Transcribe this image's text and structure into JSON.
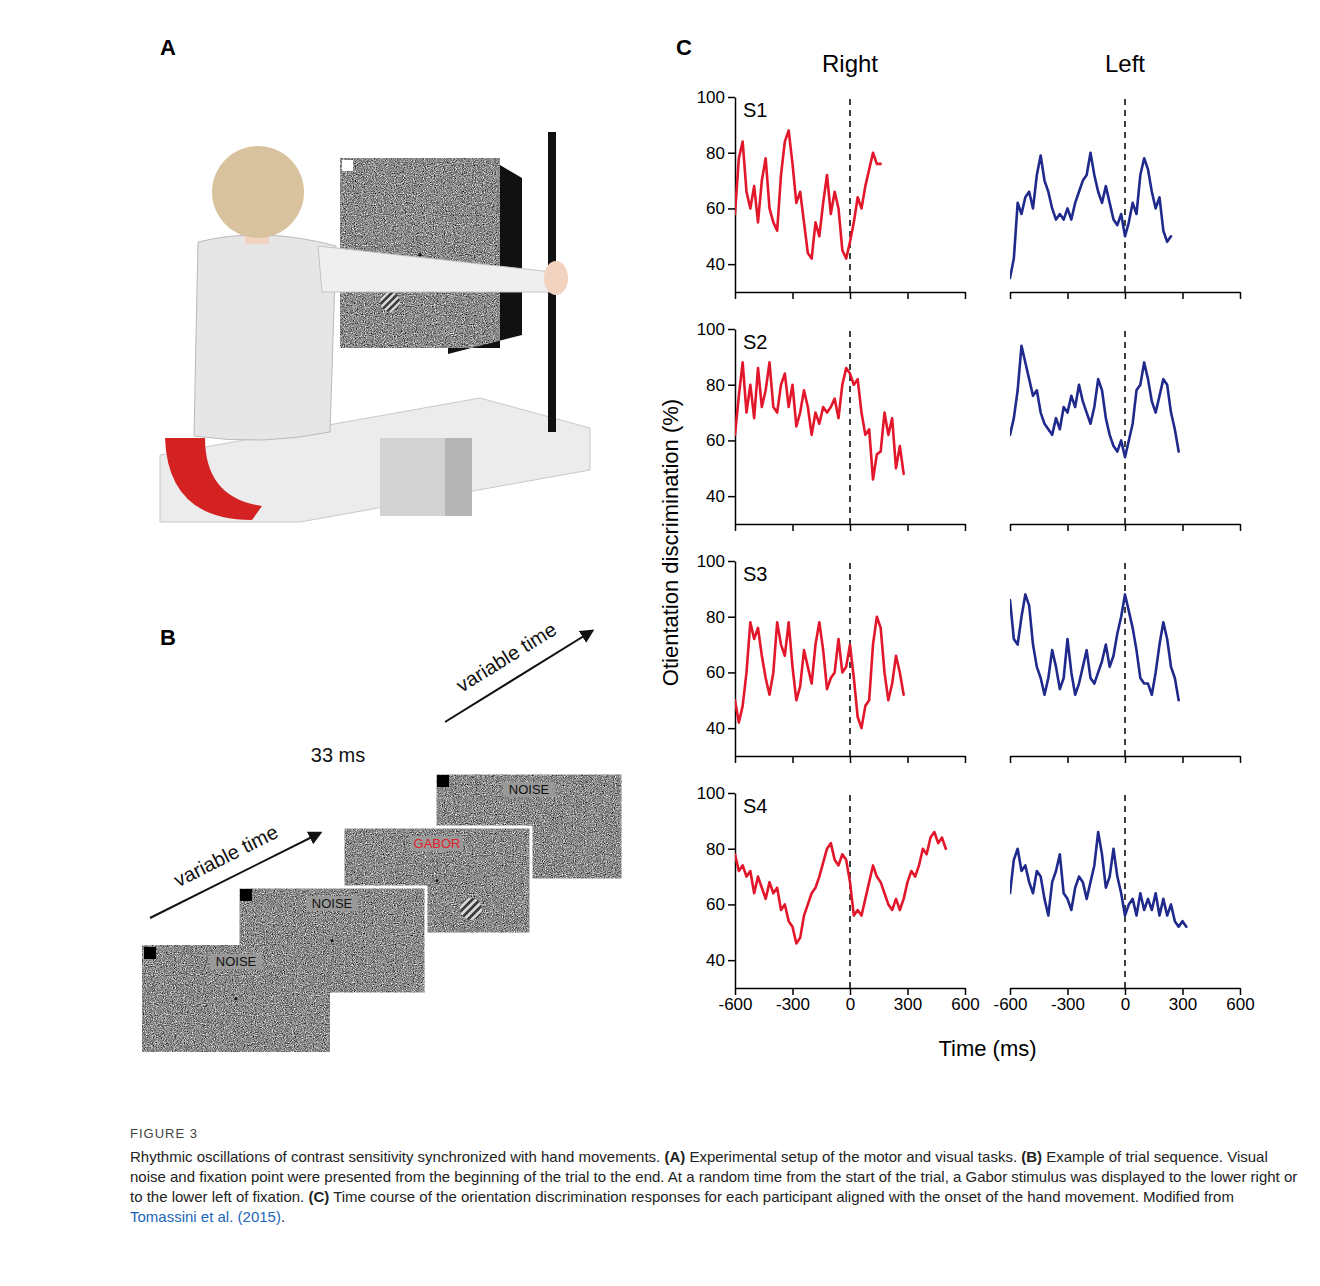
{
  "figure": {
    "label": "FIGURE 3",
    "caption": [
      {
        "text": "Rhythmic oscillations of contrast sensitivity synchronized with hand movements. ",
        "style": "plain"
      },
      {
        "text": "(A)",
        "style": "bold"
      },
      {
        "text": " Experimental setup of the motor and visual tasks. ",
        "style": "plain"
      },
      {
        "text": "(B)",
        "style": "bold"
      },
      {
        "text": " Example of trial sequence. Visual noise and fixation point were presented from the beginning of the trial to the end. At a random time from the start of the trial, a Gabor stimulus was displayed to the lower right or to the lower left of fixation. ",
        "style": "plain"
      },
      {
        "text": "(C)",
        "style": "bold"
      },
      {
        "text": " Time course of the orientation discrimination responses for each participant aligned with the onset of the hand movement. Modified from ",
        "style": "plain"
      },
      {
        "text": "Tomassini et al. (2015)",
        "style": "link"
      },
      {
        "text": ".",
        "style": "plain"
      }
    ]
  },
  "panel_a": {
    "letter": "A"
  },
  "panel_b": {
    "letter": "B",
    "screens": [
      {
        "text": "NOISE"
      },
      {
        "text": "NOISE"
      },
      {
        "text": "GABOR",
        "color": "#e0202a"
      },
      {
        "text": "NOISE"
      }
    ],
    "intervals": [
      "variable time",
      "33 ms",
      "variable time"
    ]
  },
  "panel_c": {
    "letter": "C",
    "columns": [
      "Right",
      "Left"
    ],
    "ylabel": "Otientation discrimination (%)",
    "xlabel": "Time (ms)"
  },
  "chart_data": [
    {
      "type": "line",
      "title": "S1",
      "color": "#e3172b",
      "xlim": [
        -600,
        600
      ],
      "xticks": [
        -600,
        -300,
        0,
        300,
        600
      ],
      "ylim": [
        30,
        100
      ],
      "yticks": [
        40,
        60,
        80,
        100
      ],
      "tick_labels": "y",
      "reference_x": 0,
      "x": [
        -600,
        -580,
        -560,
        -540,
        -520,
        -500,
        -480,
        -460,
        -440,
        -420,
        -400,
        -380,
        -360,
        -340,
        -320,
        -300,
        -280,
        -260,
        -240,
        -220,
        -200,
        -180,
        -160,
        -140,
        -120,
        -100,
        -80,
        -60,
        -40,
        -20,
        0,
        20,
        40,
        60,
        80,
        100,
        120,
        140,
        160
      ],
      "values": [
        58,
        78,
        84,
        66,
        60,
        68,
        55,
        70,
        78,
        60,
        55,
        52,
        72,
        84,
        88,
        76,
        62,
        66,
        55,
        44,
        42,
        55,
        50,
        62,
        72,
        58,
        66,
        60,
        45,
        42,
        48,
        55,
        64,
        60,
        68,
        74,
        80,
        76,
        76
      ]
    },
    {
      "type": "line",
      "color": "#1f2a8c",
      "xlim": [
        -600,
        600
      ],
      "xticks": [
        -600,
        -300,
        0,
        300,
        600
      ],
      "ylim": [
        30,
        100
      ],
      "tick_labels": false,
      "reference_x": 0,
      "x": [
        -600,
        -580,
        -560,
        -540,
        -520,
        -500,
        -480,
        -460,
        -440,
        -420,
        -400,
        -380,
        -360,
        -340,
        -320,
        -300,
        -280,
        -260,
        -240,
        -220,
        -200,
        -180,
        -160,
        -140,
        -120,
        -100,
        -80,
        -60,
        -40,
        -20,
        0,
        20,
        40,
        60,
        80,
        100,
        120,
        140,
        160,
        180,
        200,
        220,
        240
      ],
      "values": [
        35,
        42,
        62,
        58,
        64,
        66,
        60,
        72,
        79,
        70,
        66,
        60,
        56,
        58,
        56,
        60,
        56,
        62,
        66,
        70,
        72,
        80,
        72,
        66,
        62,
        68,
        62,
        56,
        54,
        58,
        50,
        55,
        62,
        58,
        72,
        78,
        74,
        66,
        60,
        64,
        52,
        48,
        50
      ]
    },
    {
      "type": "line",
      "title": "S2",
      "color": "#e3172b",
      "xlim": [
        -600,
        600
      ],
      "xticks": [
        -600,
        -300,
        0,
        300,
        600
      ],
      "ylim": [
        30,
        100
      ],
      "yticks": [
        40,
        60,
        80,
        100
      ],
      "tick_labels": "y",
      "reference_x": 0,
      "x": [
        -600,
        -580,
        -560,
        -540,
        -520,
        -500,
        -480,
        -460,
        -440,
        -420,
        -400,
        -380,
        -360,
        -340,
        -320,
        -300,
        -280,
        -260,
        -240,
        -220,
        -200,
        -180,
        -160,
        -140,
        -120,
        -100,
        -80,
        -60,
        -40,
        -20,
        0,
        20,
        40,
        60,
        80,
        100,
        120,
        140,
        160,
        180,
        200,
        220,
        240,
        260,
        280
      ],
      "values": [
        62,
        76,
        88,
        70,
        80,
        68,
        86,
        72,
        78,
        88,
        72,
        70,
        80,
        84,
        72,
        80,
        65,
        70,
        78,
        72,
        62,
        70,
        66,
        72,
        70,
        72,
        75,
        68,
        80,
        86,
        84,
        80,
        82,
        70,
        62,
        64,
        46,
        55,
        56,
        70,
        62,
        68,
        50,
        58,
        48
      ]
    },
    {
      "type": "line",
      "color": "#1f2a8c",
      "xlim": [
        -600,
        600
      ],
      "xticks": [
        -600,
        -300,
        0,
        300,
        600
      ],
      "ylim": [
        30,
        100
      ],
      "tick_labels": false,
      "reference_x": 0,
      "x": [
        -600,
        -580,
        -560,
        -540,
        -520,
        -500,
        -480,
        -460,
        -440,
        -420,
        -400,
        -380,
        -360,
        -340,
        -320,
        -300,
        -280,
        -260,
        -240,
        -220,
        -200,
        -180,
        -160,
        -140,
        -120,
        -100,
        -80,
        -60,
        -40,
        -20,
        0,
        20,
        40,
        60,
        80,
        100,
        120,
        140,
        160,
        180,
        200,
        220,
        240,
        260,
        280
      ],
      "values": [
        62,
        68,
        78,
        94,
        88,
        82,
        76,
        78,
        70,
        66,
        64,
        62,
        68,
        64,
        72,
        70,
        76,
        72,
        80,
        74,
        70,
        66,
        72,
        82,
        78,
        68,
        62,
        58,
        56,
        60,
        54,
        60,
        66,
        78,
        80,
        88,
        82,
        74,
        70,
        76,
        82,
        80,
        70,
        64,
        56
      ]
    },
    {
      "type": "line",
      "title": "S3",
      "color": "#e3172b",
      "xlim": [
        -600,
        600
      ],
      "xticks": [
        -600,
        -300,
        0,
        300,
        600
      ],
      "ylim": [
        30,
        100
      ],
      "yticks": [
        40,
        60,
        80,
        100
      ],
      "tick_labels": "y",
      "reference_x": 0,
      "x": [
        -600,
        -580,
        -560,
        -540,
        -520,
        -500,
        -480,
        -460,
        -440,
        -420,
        -400,
        -380,
        -360,
        -340,
        -320,
        -300,
        -280,
        -260,
        -240,
        -220,
        -200,
        -180,
        -160,
        -140,
        -120,
        -100,
        -80,
        -60,
        -40,
        -20,
        0,
        20,
        40,
        60,
        80,
        100,
        120,
        140,
        160,
        180,
        200,
        220,
        240,
        260,
        280
      ],
      "values": [
        50,
        42,
        48,
        60,
        78,
        72,
        76,
        66,
        58,
        52,
        60,
        78,
        70,
        66,
        78,
        62,
        50,
        55,
        68,
        62,
        56,
        70,
        78,
        68,
        54,
        58,
        60,
        72,
        60,
        62,
        70,
        58,
        44,
        40,
        48,
        50,
        70,
        80,
        76,
        60,
        50,
        56,
        66,
        60,
        52
      ]
    },
    {
      "type": "line",
      "color": "#1f2a8c",
      "xlim": [
        -600,
        600
      ],
      "xticks": [
        -600,
        -300,
        0,
        300,
        600
      ],
      "ylim": [
        30,
        100
      ],
      "tick_labels": false,
      "reference_x": 0,
      "x": [
        -600,
        -580,
        -560,
        -540,
        -520,
        -500,
        -480,
        -460,
        -440,
        -420,
        -400,
        -380,
        -360,
        -340,
        -320,
        -300,
        -280,
        -260,
        -240,
        -220,
        -200,
        -180,
        -160,
        -140,
        -120,
        -100,
        -80,
        -60,
        -40,
        -20,
        0,
        20,
        40,
        60,
        80,
        100,
        120,
        140,
        160,
        180,
        200,
        220,
        240,
        260,
        280
      ],
      "values": [
        86,
        72,
        70,
        80,
        88,
        84,
        70,
        62,
        58,
        52,
        58,
        68,
        62,
        54,
        58,
        72,
        60,
        52,
        56,
        62,
        68,
        58,
        56,
        60,
        64,
        70,
        62,
        66,
        74,
        80,
        88,
        82,
        76,
        68,
        58,
        56,
        56,
        52,
        60,
        70,
        78,
        72,
        62,
        58,
        50
      ]
    },
    {
      "type": "line",
      "title": "S4",
      "color": "#e3172b",
      "xlim": [
        -600,
        600
      ],
      "xticks": [
        -600,
        -300,
        0,
        300,
        600
      ],
      "ylim": [
        30,
        100
      ],
      "yticks": [
        40,
        60,
        80,
        100
      ],
      "reference_x": 0,
      "x": [
        -600,
        -580,
        -560,
        -540,
        -520,
        -500,
        -480,
        -460,
        -440,
        -420,
        -400,
        -380,
        -360,
        -340,
        -320,
        -300,
        -280,
        -260,
        -240,
        -220,
        -200,
        -180,
        -160,
        -140,
        -120,
        -100,
        -80,
        -60,
        -40,
        -20,
        0,
        20,
        40,
        60,
        80,
        100,
        120,
        140,
        160,
        180,
        200,
        220,
        240,
        260,
        280,
        300,
        320,
        340,
        360,
        380,
        400,
        420,
        440,
        460,
        480,
        500
      ],
      "values": [
        78,
        72,
        74,
        70,
        72,
        64,
        70,
        66,
        62,
        68,
        64,
        66,
        58,
        60,
        54,
        52,
        46,
        48,
        56,
        60,
        64,
        66,
        70,
        75,
        80,
        82,
        76,
        74,
        78,
        76,
        68,
        56,
        58,
        56,
        62,
        68,
        74,
        70,
        68,
        64,
        60,
        58,
        62,
        58,
        62,
        68,
        72,
        70,
        74,
        80,
        78,
        84,
        86,
        82,
        84,
        80
      ]
    },
    {
      "type": "line",
      "color": "#1f2a8c",
      "xlim": [
        -600,
        600
      ],
      "xticks": [
        -600,
        -300,
        0,
        300,
        600
      ],
      "ylim": [
        30,
        100
      ],
      "tick_labels": "x",
      "reference_x": 0,
      "x": [
        -600,
        -580,
        -560,
        -540,
        -520,
        -500,
        -480,
        -460,
        -440,
        -420,
        -400,
        -380,
        -360,
        -340,
        -320,
        -300,
        -280,
        -260,
        -240,
        -220,
        -200,
        -180,
        -160,
        -140,
        -120,
        -100,
        -80,
        -60,
        -40,
        -20,
        0,
        20,
        40,
        60,
        80,
        100,
        120,
        140,
        160,
        180,
        200,
        220,
        240,
        260,
        280,
        300,
        320
      ],
      "values": [
        64,
        76,
        80,
        72,
        74,
        68,
        64,
        72,
        70,
        62,
        56,
        68,
        72,
        78,
        64,
        62,
        58,
        66,
        70,
        68,
        62,
        68,
        74,
        86,
        78,
        66,
        70,
        80,
        70,
        64,
        56,
        60,
        62,
        56,
        64,
        58,
        62,
        58,
        64,
        56,
        62,
        56,
        60,
        54,
        52,
        54,
        52
      ]
    }
  ]
}
